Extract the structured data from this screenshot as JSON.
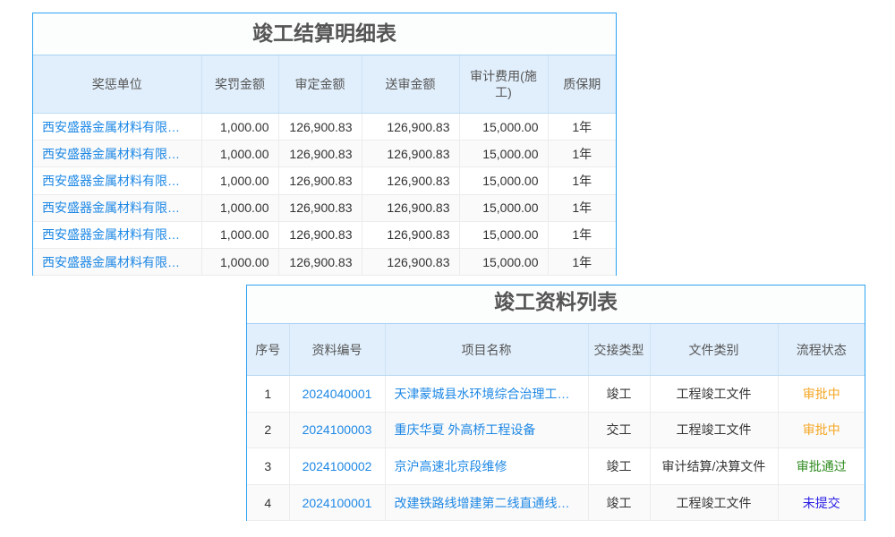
{
  "settlement": {
    "title": "竣工结算明细表",
    "headers": [
      "奖惩单位",
      "奖罚金额",
      "审定金额",
      "送审金额",
      "审计费用(施工)",
      "质保期"
    ],
    "rows": [
      [
        "西安盛器金属材料有限公司",
        "1,000.00",
        "126,900.83",
        "126,900.83",
        "15,000.00",
        "1年"
      ],
      [
        "西安盛器金属材料有限公司",
        "1,000.00",
        "126,900.83",
        "126,900.83",
        "15,000.00",
        "1年"
      ],
      [
        "西安盛器金属材料有限公司",
        "1,000.00",
        "126,900.83",
        "126,900.83",
        "15,000.00",
        "1年"
      ],
      [
        "西安盛器金属材料有限公司",
        "1,000.00",
        "126,900.83",
        "126,900.83",
        "15,000.00",
        "1年"
      ],
      [
        "西安盛器金属材料有限公司",
        "1,000.00",
        "126,900.83",
        "126,900.83",
        "15,000.00",
        "1年"
      ],
      [
        "西安盛器金属材料有限公司",
        "1,000.00",
        "126,900.83",
        "126,900.83",
        "15,000.00",
        "1年"
      ]
    ]
  },
  "documents": {
    "title": "竣工资料列表",
    "headers": [
      "序号",
      "资料编号",
      "项目名称",
      "交接类型",
      "文件类别",
      "流程状态"
    ],
    "rows": [
      [
        "1",
        "2024040001",
        "天津蒙城县水环境综合治理工程项目",
        "竣工",
        "工程竣工文件",
        "审批中"
      ],
      [
        "2",
        "2024100003",
        "重庆华夏 外高桥工程设备",
        "交工",
        "工程竣工文件",
        "审批中"
      ],
      [
        "3",
        "2024100002",
        "京沪高速北京段维修",
        "竣工",
        "审计结算/决算文件",
        "审批通过"
      ],
      [
        "4",
        "2024100001",
        "改建铁路线增建第二线直通线工程",
        "竣工",
        "工程竣工文件",
        "未提交"
      ]
    ],
    "status_colors": {
      "审批中": "#f5a623",
      "审批通过": "#2e8b1e",
      "未提交": "#2a1ee6"
    }
  }
}
